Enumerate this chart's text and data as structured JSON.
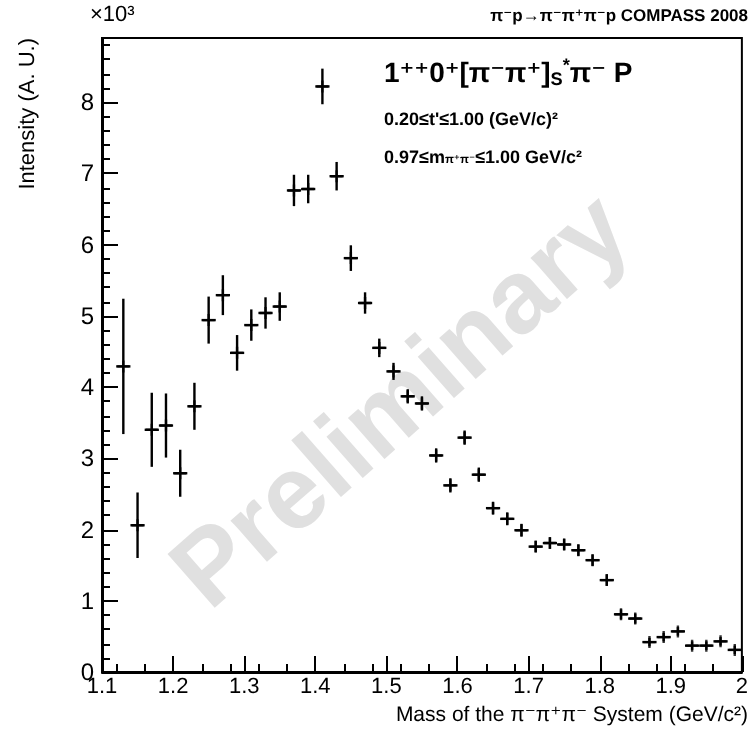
{
  "chart_data": {
    "type": "scatter",
    "title": "π⁻p→π⁻π⁺π⁻p COMPASS 2008",
    "xlabel": "Mass of the π⁻π⁺π⁻ System (GeV/c²)",
    "ylabel": "Intensity (A. U.)",
    "annotations": [
      "×10³",
      "1⁺⁺0⁺[π⁻π⁺]$_{S}$$^{*}$π⁻ P",
      "0.20≤t'≤1.00 (GeV/c)²",
      "0.97≤m$_{π⁺π⁻}$≤1.00 GeV/c²",
      "Preliminary"
    ],
    "x": [
      1.13,
      1.15,
      1.17,
      1.19,
      1.21,
      1.23,
      1.25,
      1.27,
      1.29,
      1.31,
      1.33,
      1.35,
      1.37,
      1.39,
      1.41,
      1.43,
      1.45,
      1.47,
      1.49,
      1.51,
      1.53,
      1.55,
      1.57,
      1.59,
      1.61,
      1.63,
      1.65,
      1.67,
      1.69,
      1.71,
      1.73,
      1.75,
      1.77,
      1.79,
      1.81,
      1.83,
      1.85,
      1.87,
      1.89,
      1.91,
      1.93,
      1.95,
      1.97,
      1.99
    ],
    "values": [
      4.29,
      2.06,
      3.4,
      3.46,
      2.79,
      3.73,
      4.94,
      5.29,
      4.48,
      4.87,
      5.04,
      5.13,
      6.76,
      6.78,
      8.22,
      6.96,
      5.81,
      5.18,
      4.55,
      4.22,
      3.87,
      3.77,
      3.04,
      2.62,
      3.29,
      2.77,
      2.3,
      2.15,
      1.99,
      1.76,
      1.81,
      1.79,
      1.71,
      1.57,
      1.29,
      0.81,
      0.75,
      0.42,
      0.49,
      0.57,
      0.37,
      0.37,
      0.43,
      0.31
    ],
    "errors": [
      0.95,
      0.46,
      0.52,
      0.45,
      0.33,
      0.33,
      0.33,
      0.28,
      0.25,
      0.22,
      0.22,
      0.2,
      0.22,
      0.2,
      0.25,
      0.2,
      0.18,
      0.15,
      0.13,
      0.12,
      0.1,
      0.1,
      0.1,
      0.1,
      0.1,
      0.1,
      0.09,
      0.09,
      0.09,
      0.08,
      0.08,
      0.08,
      0.08,
      0.08,
      0.08,
      0.07,
      0.07,
      0.06,
      0.06,
      0.06,
      0.06,
      0.06,
      0.06,
      0.06
    ],
    "xerrors": [
      0.01,
      0.01,
      0.01,
      0.01,
      0.01,
      0.01,
      0.01,
      0.01,
      0.01,
      0.01,
      0.01,
      0.01,
      0.01,
      0.01,
      0.01,
      0.01,
      0.01,
      0.01,
      0.01,
      0.01,
      0.01,
      0.01,
      0.01,
      0.01,
      0.01,
      0.01,
      0.01,
      0.01,
      0.01,
      0.01,
      0.01,
      0.01,
      0.01,
      0.01,
      0.01,
      0.01,
      0.01,
      0.01,
      0.01,
      0.01,
      0.01,
      0.01,
      0.01,
      0.01
    ],
    "color": "#000000",
    "marker": "cross",
    "xlim": [
      1.1,
      2.0
    ],
    "xticks": [
      1.1,
      1.2,
      1.3,
      1.4,
      1.5,
      1.6,
      1.7,
      1.8,
      1.9,
      2.0
    ],
    "ylim": [
      0,
      8.9
    ],
    "yticks": [
      0,
      1,
      2,
      3,
      4,
      5,
      6,
      7,
      8
    ],
    "grid": false
  }
}
